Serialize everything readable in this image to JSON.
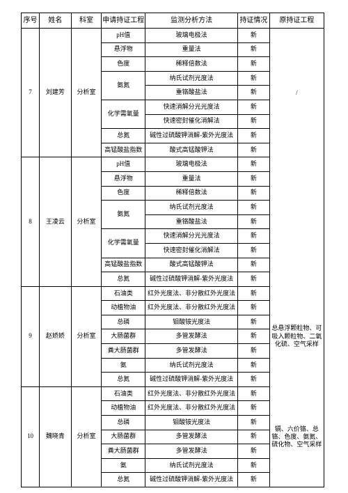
{
  "headers": [
    "序号",
    "姓名",
    "科室",
    "申请持证工程",
    "监测分析方法",
    "持证情况",
    "原持证工程"
  ],
  "groups": [
    {
      "seq": "7",
      "name": "刘建芳",
      "dept": "分析室",
      "orig": "/",
      "rows": [
        {
          "proj": "pH值",
          "method": "玻璃电极法",
          "stat": "新"
        },
        {
          "proj": "悬浮物",
          "method": "重量法",
          "stat": "新"
        },
        {
          "proj": "色度",
          "method": "稀释倍数法",
          "stat": "新"
        },
        {
          "proj": "氨氮",
          "method": "纳氏试剂光度法",
          "stat": "新"
        },
        {
          "proj": "",
          "method": "重铬酸盐法",
          "stat": "新"
        },
        {
          "proj": "化学需氧量",
          "method": "快速消解分光光度法",
          "stat": "新"
        },
        {
          "proj": "",
          "method": "快速密封催化消解法",
          "stat": "新"
        },
        {
          "proj": "总氮",
          "method": "碱性过硫酸钾消解-紫外光度法",
          "stat": "新"
        },
        {
          "proj": "高锰酸盐指数",
          "method": "酸式高锰酸钾法",
          "stat": "新"
        }
      ]
    },
    {
      "seq": "8",
      "name": "王凌云",
      "dept": "分析室",
      "orig": "",
      "rows": [
        {
          "proj": "pH值",
          "method": "玻璃电极法",
          "stat": "新"
        },
        {
          "proj": "悬浮物",
          "method": "重量法",
          "stat": "新"
        },
        {
          "proj": "色度",
          "method": "稀释倍数法",
          "stat": "新"
        },
        {
          "proj": "氨氮",
          "method": "纳氏试剂光度法",
          "stat": "新"
        },
        {
          "proj": "",
          "method": "重铬酸盐法",
          "stat": "新"
        },
        {
          "proj": "化学需氧量",
          "method": "快速消解分光光度法",
          "stat": "新"
        },
        {
          "proj": "",
          "method": "快速密封催化消解法",
          "stat": "新"
        },
        {
          "proj": "高锰酸盐指数",
          "method": "酸式高锰酸钾法",
          "stat": "新"
        },
        {
          "proj": "总氮",
          "method": "碱性过硫酸钾消解-紫外光度法",
          "stat": "新"
        }
      ]
    },
    {
      "seq": "9",
      "name": "赵娇娇",
      "dept": "分析室",
      "orig": "总悬浮颗粒物、可吸入颗粒物、二氧化硫、空气采样",
      "rows": [
        {
          "proj": "石油类",
          "method": "红外光度法、非分散红外光度法",
          "stat": "新"
        },
        {
          "proj": "动植物油",
          "method": "红外光度法、非分散红外光度法",
          "stat": "新"
        },
        {
          "proj": "总磷",
          "method": "钼酸铵光度法",
          "stat": "新"
        },
        {
          "proj": "大肠菌群",
          "method": "多管发酵法",
          "stat": "新"
        },
        {
          "proj": "粪大肠菌群",
          "method": "多管发酵法",
          "stat": "新"
        },
        {
          "proj": "氨",
          "method": "纳氏试剂光度法",
          "stat": "新"
        },
        {
          "proj": "总氮",
          "method": "碱性过硫酸钾消解-紫外光度法",
          "stat": "新"
        }
      ]
    },
    {
      "seq": "10",
      "name": "魏晓青",
      "dept": "分析室",
      "orig": "镉、六价铬、总铬、色度、氨氮、硫化物、空气采样",
      "rows": [
        {
          "proj": "石油类",
          "method": "红外光度法、非分散红外光度法",
          "stat": "新"
        },
        {
          "proj": "动植物油",
          "method": "红外光度法、非分散红外光度法",
          "stat": "新"
        },
        {
          "proj": "总磷",
          "method": "钼酸铵光度法",
          "stat": "新"
        },
        {
          "proj": "大肠菌群",
          "method": "多管发酵法",
          "stat": "新"
        },
        {
          "proj": "粪大肠菌群",
          "method": "多管发酵法",
          "stat": "新"
        },
        {
          "proj": "氨",
          "method": "纳氏试剂光度法",
          "stat": "新"
        },
        {
          "proj": "总氮",
          "method": "碱性过硫酸钾消解-紫外光度法",
          "stat": "新"
        }
      ]
    }
  ]
}
